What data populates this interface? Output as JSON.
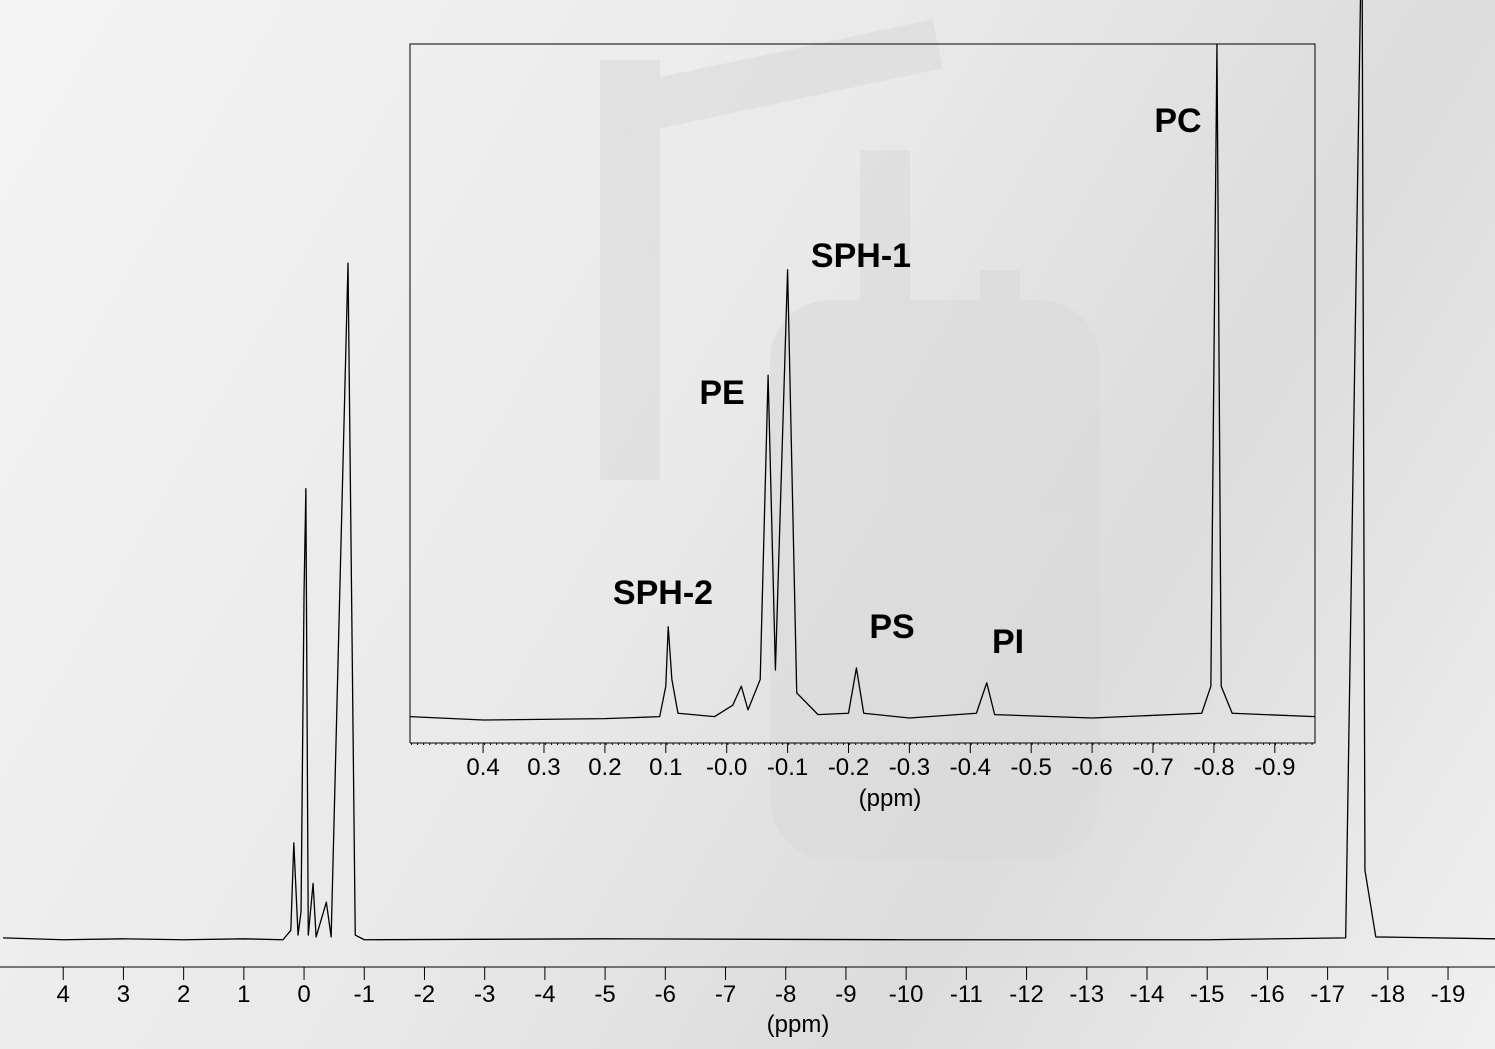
{
  "chart_data": [
    {
      "type": "line",
      "xlabel": "(ppm)",
      "color": "#000000",
      "x": [
        5.0,
        4.0,
        3.0,
        2.0,
        1.0,
        0.35,
        0.22,
        0.17,
        0.1,
        0.05,
        0.0,
        -0.03,
        -0.07,
        -0.15,
        -0.2,
        -0.37,
        -0.45,
        -0.73,
        -0.85,
        -1.0,
        -5.0,
        -10.0,
        -15.0,
        -17.3,
        -17.57,
        -17.62,
        -17.8,
        -19.78
      ],
      "values": [
        0.2,
        0,
        0.1,
        0,
        0.1,
        0,
        1,
        10.3,
        0.5,
        3,
        37,
        48,
        0.5,
        6,
        0.3,
        4,
        0.3,
        72,
        0.5,
        0,
        0.1,
        0,
        0,
        0.2,
        110,
        7.4,
        0.3,
        0.1
      ],
      "xlim": [
        5.05,
        -19.78
      ],
      "ylim": [
        -2.9,
        100
      ],
      "xticks": [
        4,
        3,
        2,
        1,
        0,
        -1,
        -2,
        -3,
        -4,
        -5,
        -6,
        -7,
        -8,
        -9,
        -10,
        -11,
        -12,
        -13,
        -14,
        -15,
        -16,
        -17,
        -18,
        -19
      ]
    },
    {
      "type": "line",
      "xlabel": "(ppm)",
      "color": "#000000",
      "x": [
        0.52,
        0.4,
        0.2,
        0.11,
        0.1,
        0.096,
        0.09,
        0.08,
        0.02,
        -0.01,
        -0.024,
        -0.035,
        -0.055,
        -0.068,
        -0.08,
        -0.1,
        -0.115,
        -0.15,
        -0.2,
        -0.213,
        -0.225,
        -0.3,
        -0.41,
        -0.427,
        -0.44,
        -0.6,
        -0.78,
        -0.795,
        -0.805,
        -0.812,
        -0.83,
        -0.966
      ],
      "values": [
        0.5,
        0,
        0.2,
        0.5,
        5,
        13.8,
        6,
        1,
        0.5,
        2.2,
        5,
        1.5,
        6,
        51,
        7.4,
        66.6,
        4,
        0.8,
        1,
        7.7,
        1,
        0.3,
        1,
        5.5,
        0.8,
        0.3,
        1,
        5,
        100,
        5,
        1,
        0.5
      ],
      "xlim": [
        0.52,
        -0.966
      ],
      "ylim": [
        -3.4,
        100
      ],
      "xticks": [
        0.4,
        0.3,
        0.2,
        0.1,
        {
          "value": 0,
          "label": "-0.0"
        },
        -0.1,
        -0.2,
        -0.3,
        -0.4,
        -0.5,
        -0.6,
        -0.7,
        -0.8,
        -0.9
      ],
      "annotations": [
        "PC",
        "SPH-1",
        "PE",
        "SPH-2",
        "PS",
        "PI"
      ]
    }
  ]
}
